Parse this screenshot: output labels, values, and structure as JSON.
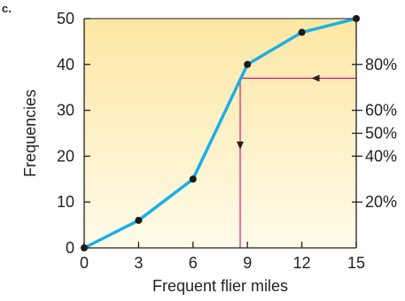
{
  "panel_label": "c.",
  "colors": {
    "line": "#1ab0e6",
    "point": "#1a1a1a",
    "guide": "#e0167a",
    "bg_top": "#fde7a4",
    "bg_bottom": "#fffbe9",
    "axis": "#231f20"
  },
  "chart_data": {
    "type": "line",
    "xlabel": "Frequent flier miles",
    "ylabel": "Frequencies",
    "xlim": [
      0,
      15
    ],
    "ylim": [
      0,
      50
    ],
    "x_ticks": [
      0,
      3,
      6,
      9,
      12,
      15
    ],
    "y_ticks": [
      0,
      10,
      20,
      30,
      40,
      50
    ],
    "series": [
      {
        "x": [
          0,
          3,
          6,
          9,
          12,
          15
        ],
        "values": [
          0,
          6,
          15,
          40,
          47,
          50
        ]
      }
    ],
    "right_axis": {
      "ticks": [
        {
          "label": "20%",
          "value": 10
        },
        {
          "label": "40%",
          "value": 20
        },
        {
          "label": "50%",
          "value": 25
        },
        {
          "label": "60%",
          "value": 30
        },
        {
          "label": "80%",
          "value": 40
        }
      ]
    },
    "guide": {
      "percent_level": 37,
      "x_value": 8.6
    }
  }
}
